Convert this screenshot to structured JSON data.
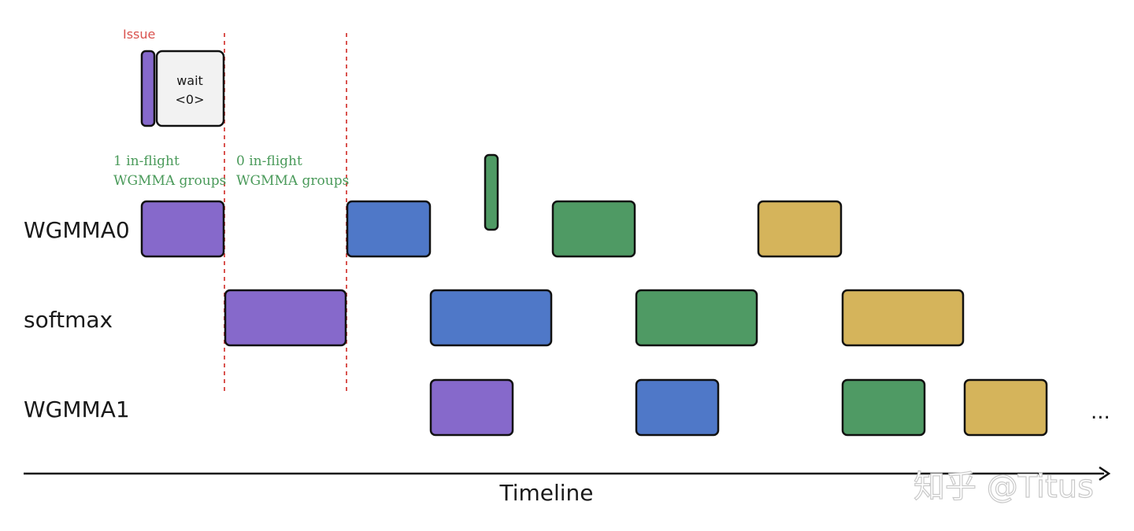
{
  "colors": {
    "purple": "#8669cb",
    "blue": "#4f78c8",
    "green": "#4f9a64",
    "yellow": "#d5b45b",
    "wait_fill": "#f2f2f2",
    "marker": "#d9534f",
    "note": "#4a9a5a",
    "outline": "#111111"
  },
  "rows": [
    {
      "id": "wgmma0",
      "label": "WGMMA0"
    },
    {
      "id": "softmax",
      "label": "softmax"
    },
    {
      "id": "wgmma1",
      "label": "WGMMA1"
    }
  ],
  "issue": {
    "label": "Issue",
    "wait_line1": "wait",
    "wait_line2": "<0>"
  },
  "annotations": [
    {
      "line1": "1 in-flight",
      "line2": "WGMMA groups"
    },
    {
      "line1": "0 in-flight",
      "line2": "WGMMA groups"
    }
  ],
  "blocks": [
    {
      "row": "wgmma0",
      "color": "purple"
    },
    {
      "row": "wgmma0",
      "color": "blue"
    },
    {
      "row": "wgmma0",
      "color": "green"
    },
    {
      "row": "wgmma0",
      "color": "yellow"
    },
    {
      "row": "softmax",
      "color": "purple"
    },
    {
      "row": "softmax",
      "color": "blue"
    },
    {
      "row": "softmax",
      "color": "green"
    },
    {
      "row": "softmax",
      "color": "yellow"
    },
    {
      "row": "wgmma1",
      "color": "purple"
    },
    {
      "row": "wgmma1",
      "color": "blue"
    },
    {
      "row": "wgmma1",
      "color": "green"
    },
    {
      "row": "wgmma1",
      "color": "yellow"
    }
  ],
  "timeline": {
    "label": "Timeline",
    "continuation": "..."
  },
  "watermark": "知乎 @Titus"
}
